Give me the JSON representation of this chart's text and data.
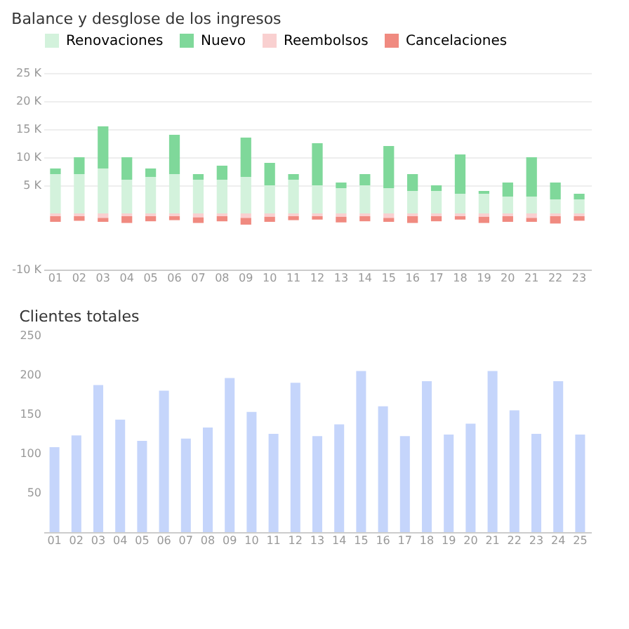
{
  "chart_data": [
    {
      "type": "bar",
      "title": "Balance y desglose de los ingresos",
      "stacked": true,
      "legend": "top",
      "grid": "y",
      "categories": [
        "01",
        "02",
        "03",
        "04",
        "05",
        "06",
        "07",
        "08",
        "09",
        "10",
        "11",
        "12",
        "13",
        "14",
        "15",
        "16",
        "17",
        "18",
        "19",
        "20",
        "21",
        "22",
        "23"
      ],
      "ylim": [
        -10000,
        25000
      ],
      "yticks": [
        {
          "value": -10000,
          "label": "-10 K"
        },
        {
          "value": 5000,
          "label": "5 K"
        },
        {
          "value": 10000,
          "label": "10 K"
        },
        {
          "value": 15000,
          "label": "15 K"
        },
        {
          "value": 20000,
          "label": "20 K"
        },
        {
          "value": 25000,
          "label": "25 K"
        }
      ],
      "series": [
        {
          "name": "Renovaciones",
          "color": "#d3f2dc",
          "values": [
            7000,
            7000,
            8000,
            6000,
            6500,
            7000,
            6000,
            6000,
            6500,
            5000,
            6000,
            5000,
            4500,
            5000,
            4500,
            4000,
            4000,
            3500,
            3500,
            3000,
            3000,
            2500,
            2500
          ]
        },
        {
          "name": "Nuevo",
          "color": "#7fd89a",
          "values": [
            1000,
            3000,
            7500,
            4000,
            1500,
            7000,
            1000,
            2500,
            7000,
            4000,
            1000,
            7500,
            1000,
            2000,
            7500,
            3000,
            1000,
            7000,
            500,
            2500,
            7000,
            3000,
            1000
          ]
        },
        {
          "name": "Reembolsos",
          "color": "#f9d0d0",
          "values": [
            -500,
            -500,
            -800,
            -500,
            -500,
            -500,
            -700,
            -500,
            -800,
            -600,
            -500,
            -500,
            -600,
            -500,
            -800,
            -500,
            -500,
            -500,
            -600,
            -500,
            -800,
            -500,
            -500
          ]
        },
        {
          "name": "Cancelaciones",
          "color": "#f08a80",
          "values": [
            -1000,
            -800,
            -700,
            -1200,
            -900,
            -700,
            -1000,
            -900,
            -1200,
            -900,
            -700,
            -600,
            -1000,
            -900,
            -700,
            -1200,
            -900,
            -600,
            -1100,
            -1000,
            -700,
            -1300,
            -800
          ]
        }
      ]
    },
    {
      "type": "bar",
      "title": "Clientes totales",
      "grid": false,
      "legend": false,
      "categories": [
        "01",
        "02",
        "03",
        "04",
        "05",
        "06",
        "07",
        "08",
        "09",
        "10",
        "11",
        "12",
        "13",
        "14",
        "15",
        "16",
        "17",
        "18",
        "19",
        "20",
        "21",
        "22",
        "23",
        "24",
        "25"
      ],
      "ylim": [
        0,
        250
      ],
      "yticks": [
        50,
        100,
        150,
        200,
        250
      ],
      "series": [
        {
          "color": "#c5d5fb",
          "values": [
            108,
            123,
            187,
            143,
            116,
            180,
            119,
            133,
            196,
            153,
            125,
            190,
            122,
            137,
            205,
            160,
            122,
            192,
            124,
            138,
            205,
            155,
            125,
            192,
            124
          ]
        }
      ]
    }
  ]
}
